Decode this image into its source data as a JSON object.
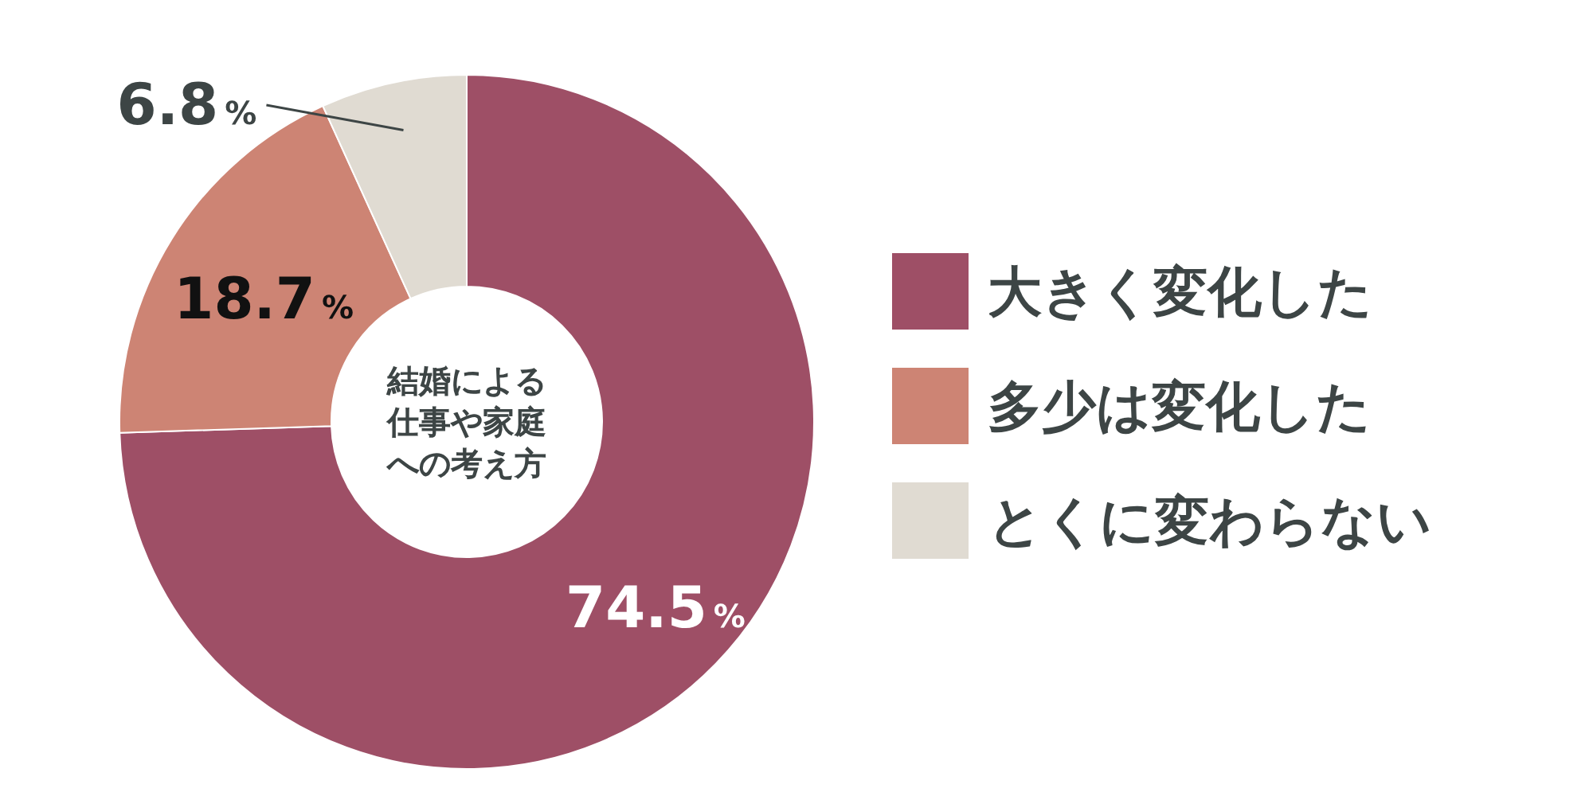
{
  "chart_data": {
    "type": "donut",
    "title": "結婚による仕事や家庭への考え方",
    "categories": [
      "大きく変化した",
      "多少は変化した",
      "とくに変わらない"
    ],
    "values": [
      74.5,
      18.7,
      6.8
    ],
    "colors": [
      "#9e4f66",
      "#cd8474",
      "#e0dbd2"
    ],
    "value_labels": [
      "74.5%",
      "18.7%",
      "6.8%"
    ],
    "legend": "right"
  }
}
